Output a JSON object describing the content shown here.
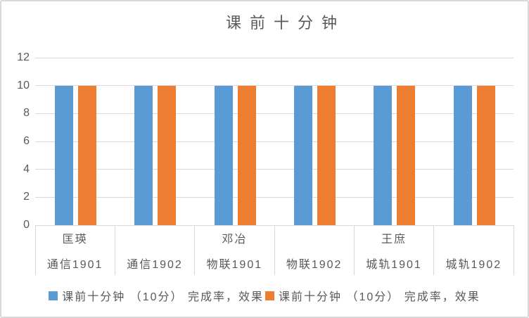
{
  "chart_data": {
    "type": "bar",
    "title": "课前十分钟",
    "categories": [
      "通信1901",
      "通信1902",
      "物联1901",
      "物联1902",
      "城轨1901",
      "城轨1902"
    ],
    "group_labels": [
      "匡瑛",
      "",
      "邓冶",
      "",
      "王庶",
      ""
    ],
    "series": [
      {
        "name": "课前十分钟 （10分） 完成率，效果",
        "color": "#5B9BD5",
        "values": [
          10,
          10,
          10,
          10,
          10,
          10
        ]
      },
      {
        "name": "课前十分钟 （10分） 完成率，效果",
        "color": "#ED7D31",
        "values": [
          10,
          10,
          10,
          10,
          10,
          10
        ]
      }
    ],
    "ylim": [
      0,
      12
    ],
    "yticks": [
      0,
      2,
      4,
      6,
      8,
      10,
      12
    ],
    "grid": true,
    "legend_position": "bottom"
  },
  "colors": {
    "text": "#595959",
    "gridline": "#D9D9D9",
    "axis_line": "#D9D9D9",
    "frame_border": "#D9D9D9",
    "background": "#FFFFFF",
    "series_blue": "#5B9BD5",
    "series_orange": "#ED7D31"
  }
}
